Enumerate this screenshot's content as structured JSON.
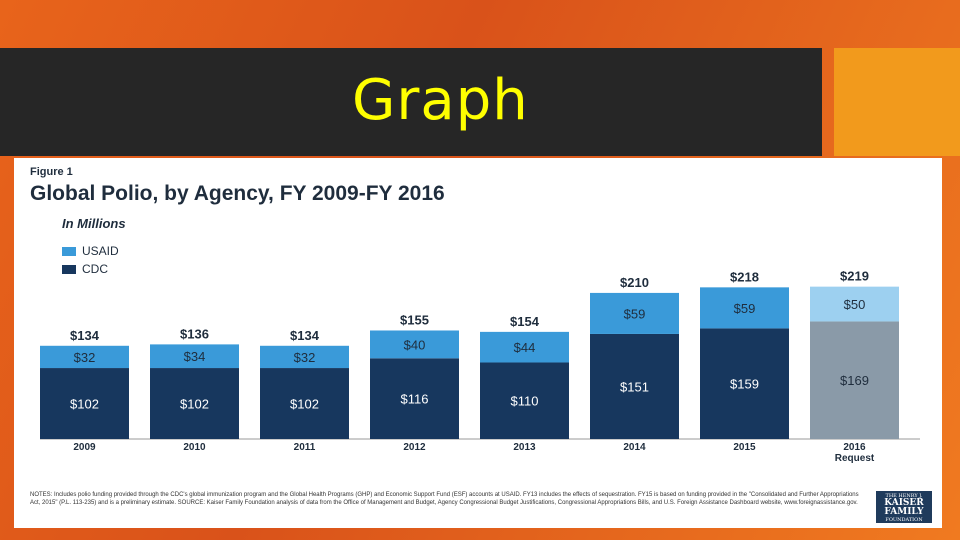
{
  "slide": {
    "title": "Graph"
  },
  "figure": {
    "label": "Figure 1",
    "title": "Global Polio, by Agency, FY 2009-FY 2016",
    "subtitle": "In Millions",
    "notes": "NOTES: Includes polio funding provided through the CDC's global immunization program and the Global Health Programs (GHP) and Economic Support Fund (ESF) accounts at USAID. FY13 includes the effects of sequestration. FY15 is based on funding provided in the \"Consolidated and Further Appropriations Act, 2015\" (P.L. 113-235) and is a preliminary estimate. SOURCE: Kaiser Family Foundation analysis of data from the Office of Management and Budget, Agency Congressional Budget Justifications, Congressional Appropriations Bills, and U.S. Foreign Assistance Dashboard website, www.foreignassistance.gov.",
    "logo": {
      "top": "THE HENRY J.",
      "main": "KAISER FAMILY",
      "bottom": "FOUNDATION"
    }
  },
  "colors": {
    "cdc": "#17375e",
    "usaid": "#3a9ad9",
    "cdc_request": "#8a9aa8",
    "usaid_request": "#9dd0f0"
  },
  "chart_data": {
    "type": "bar",
    "stacked": true,
    "categories": [
      "2009",
      "2010",
      "2011",
      "2012",
      "2013",
      "2014",
      "2015",
      "2016\nRequest"
    ],
    "series": [
      {
        "name": "CDC",
        "values": [
          102,
          102,
          102,
          116,
          110,
          151,
          159,
          169
        ]
      },
      {
        "name": "USAID",
        "values": [
          32,
          34,
          32,
          40,
          44,
          59,
          59,
          50
        ]
      }
    ],
    "value_labels": {
      "CDC": [
        "$102",
        "$102",
        "$102",
        "$116",
        "$110",
        "$151",
        "$159",
        "$169"
      ],
      "USAID": [
        "$32",
        "$34",
        "$32",
        "$40",
        "$44",
        "$59",
        "$59",
        "$50"
      ]
    },
    "totals": [
      "$134",
      "$136",
      "$134",
      "$155",
      "$154",
      "$210",
      "$218",
      "$219"
    ],
    "legend_placement": "top-left",
    "grid": false,
    "ylim": [
      0,
      230
    ]
  }
}
